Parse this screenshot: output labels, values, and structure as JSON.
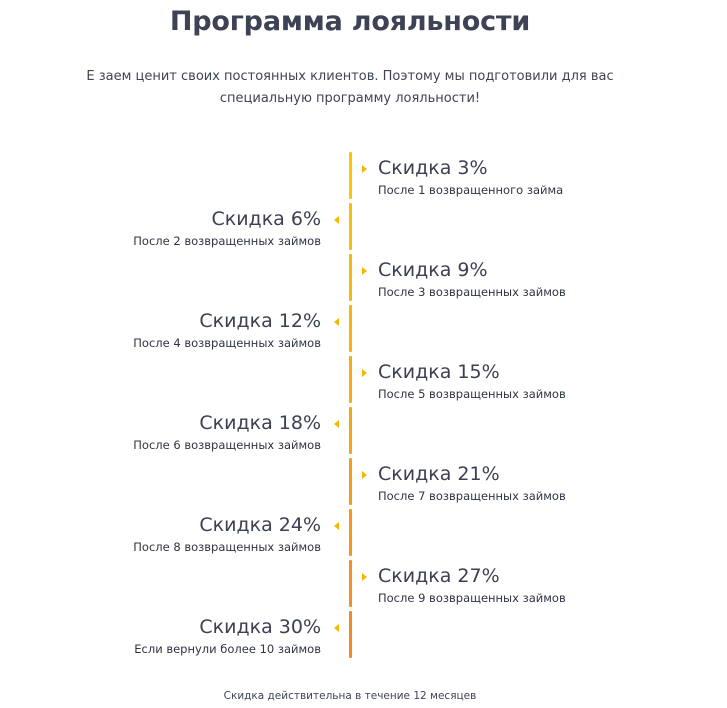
{
  "title": "Программа лояльности",
  "subtitle_line1": "Е заем ценит своих постоянных клиентов. Поэтому мы подготовили для вас",
  "subtitle_line2": "специальную программу лояльности!",
  "steps": [
    {
      "discount": "Скидка 3%",
      "condition": "После 1 возвращенного займа"
    },
    {
      "discount": "Скидка 6%",
      "condition": "После 2 возвращенных займов"
    },
    {
      "discount": "Скидка 9%",
      "condition": "После 3 возвращенных займов"
    },
    {
      "discount": "Скидка 12%",
      "condition": "После 4 возвращенных займов"
    },
    {
      "discount": "Скидка 15%",
      "condition": "После 5 возвращенных займов"
    },
    {
      "discount": "Скидка 18%",
      "condition": "После 6 возвращенных займов"
    },
    {
      "discount": "Скидка 21%",
      "condition": "После 7 возвращенных займов"
    },
    {
      "discount": "Скидка 24%",
      "condition": "После 8 возвращенных займов"
    },
    {
      "discount": "Скидка 27%",
      "condition": "После 9 возвращенных займов"
    },
    {
      "discount": "Скидка 30%",
      "condition": "Если вернули более 10 займов"
    }
  ],
  "footer": "Скидка действительна в течение 12 месяцев",
  "colors": {
    "timeline_start": "#f7c800",
    "timeline_end": "#f08a24",
    "arrow": "#f5b800",
    "text": "#3b4152"
  }
}
